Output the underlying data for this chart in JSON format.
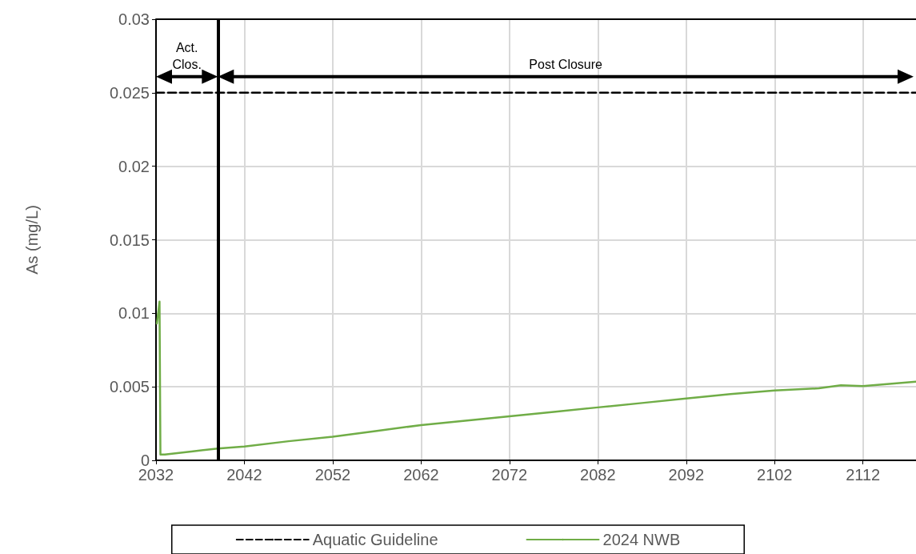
{
  "chart_data": {
    "type": "line",
    "ylabel": "As (mg/L)",
    "xlim": [
      2032,
      2118
    ],
    "xticks": [
      2032,
      2042,
      2052,
      2062,
      2072,
      2082,
      2092,
      2102,
      2112
    ],
    "ylim": [
      0,
      0.03
    ],
    "yticks": [
      0,
      0.005,
      0.01,
      0.015,
      0.02,
      0.025,
      0.03
    ],
    "grid": true,
    "legend": "bottom",
    "marker": "none",
    "series": [
      {
        "name": "Aquatic Guideline",
        "color": "#000000",
        "line_style": "dashed",
        "x": [
          2032,
          2118
        ],
        "values": [
          0.025,
          0.025
        ]
      },
      {
        "name": "2024 NWB",
        "color": "#70ad47",
        "line_style": "solid",
        "x": [
          2032.1,
          2032.4,
          2032.5,
          2033,
          2036,
          2039,
          2042,
          2047,
          2052,
          2057,
          2062,
          2067,
          2072,
          2077,
          2082,
          2087,
          2092,
          2097,
          2102,
          2107,
          2109.5,
          2112,
          2115,
          2118
        ],
        "values": [
          0.0093,
          0.0108,
          0.0004,
          0.0004,
          0.0006,
          0.0008,
          0.00094,
          0.0013,
          0.0016,
          0.002,
          0.0024,
          0.0027,
          0.003,
          0.0033,
          0.0036,
          0.0039,
          0.0042,
          0.0045,
          0.00475,
          0.0049,
          0.0051,
          0.00505,
          0.0052,
          0.00535
        ]
      }
    ],
    "ref_lines": [
      {
        "axis": "x",
        "value": 2039,
        "color": "#000000",
        "line_style": "solid"
      }
    ],
    "annotations": [
      "Act. Clos.",
      "Post Closure"
    ]
  }
}
